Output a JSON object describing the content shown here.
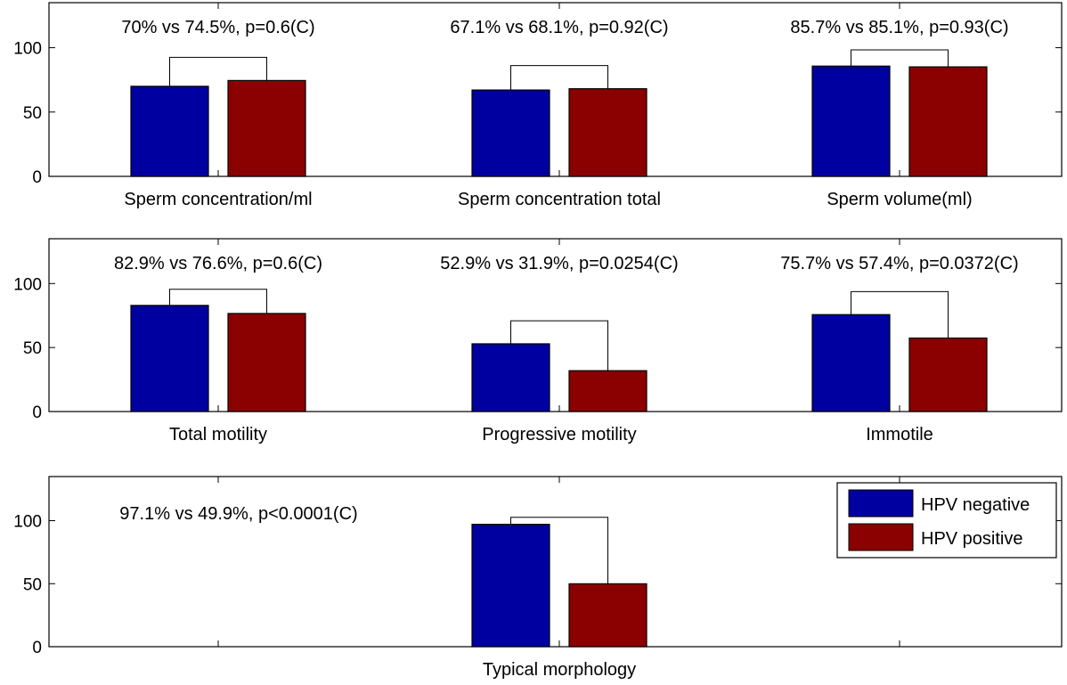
{
  "chart_data": {
    "type": "bar",
    "ylim": [
      0,
      135
    ],
    "yticks": [
      0,
      50,
      100
    ],
    "grid": false,
    "legend": {
      "position": "right",
      "entries": [
        {
          "name": "HPV negative",
          "color": "#0000a0"
        },
        {
          "name": "HPV positive",
          "color": "#8b0000"
        }
      ]
    },
    "series": [
      {
        "name": "HPV negative",
        "color": "#0000a0"
      },
      {
        "name": "HPV positive",
        "color": "#8b0000"
      }
    ],
    "panels": [
      {
        "groups": [
          {
            "label": "Sperm concentration/ml",
            "values": [
              70,
              74.5
            ],
            "annotation": "70% vs 74.5%, p=0.6(C)"
          },
          {
            "label": "Sperm concentration total",
            "values": [
              67.1,
              68.1
            ],
            "annotation": "67.1% vs 68.1%, p=0.92(C)"
          },
          {
            "label": "Sperm volume(ml)",
            "values": [
              85.7,
              85.1
            ],
            "annotation": "85.7% vs 85.1%, p=0.93(C)"
          }
        ]
      },
      {
        "groups": [
          {
            "label": "Total motility",
            "values": [
              82.9,
              76.6
            ],
            "annotation": "82.9% vs 76.6%, p=0.6(C)"
          },
          {
            "label": "Progressive motility",
            "values": [
              52.9,
              31.9
            ],
            "annotation": "52.9% vs 31.9%, p=0.0254(C)"
          },
          {
            "label": "Immotile",
            "values": [
              75.7,
              57.4
            ],
            "annotation": "75.7% vs 57.4%, p=0.0372(C)"
          }
        ]
      },
      {
        "groups": [
          {
            "label": "Typical morphology",
            "values": [
              97.1,
              49.9
            ],
            "annotation": "97.1% vs 49.9%, p<0.0001(C)"
          }
        ]
      }
    ]
  }
}
